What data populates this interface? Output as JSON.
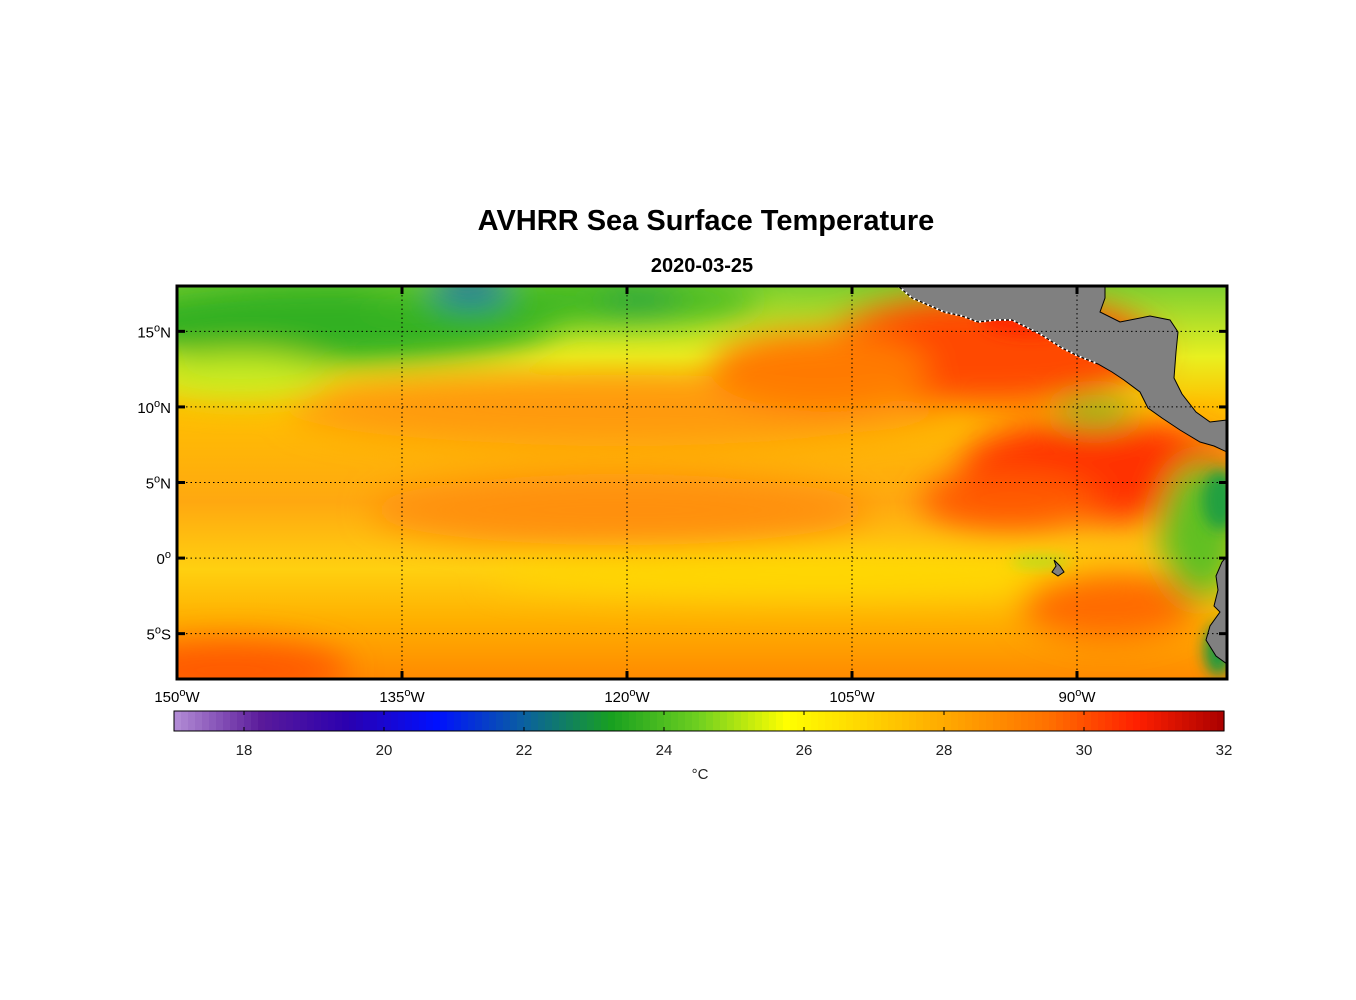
{
  "figure": {
    "title": "AVHRR Sea Surface Temperature",
    "subtitle": "2020-03-25"
  },
  "map": {
    "lon_range": [
      -150,
      -80
    ],
    "lat_range": [
      -8,
      18
    ],
    "lon_ticks": [
      {
        "value": -150,
        "num": "150",
        "sup": "o",
        "hem": "W"
      },
      {
        "value": -135,
        "num": "135",
        "sup": "o",
        "hem": "W"
      },
      {
        "value": -120,
        "num": "120",
        "sup": "o",
        "hem": "W"
      },
      {
        "value": -105,
        "num": "105",
        "sup": "o",
        "hem": "W"
      },
      {
        "value": -90,
        "num": "90",
        "sup": "o",
        "hem": "W"
      }
    ],
    "lat_ticks": [
      {
        "value": 15,
        "num": "15",
        "sup": "o",
        "hem": "N"
      },
      {
        "value": 10,
        "num": "10",
        "sup": "o",
        "hem": "N"
      },
      {
        "value": 5,
        "num": "5",
        "sup": "o",
        "hem": "N"
      },
      {
        "value": 0,
        "num": "0",
        "sup": "o",
        "hem": ""
      },
      {
        "value": -5,
        "num": "5",
        "sup": "o",
        "hem": "S"
      }
    ],
    "land_color": "#808080",
    "grid": "dotted"
  },
  "colorbar": {
    "range": [
      17,
      32
    ],
    "ticks": [
      "18",
      "20",
      "22",
      "24",
      "26",
      "28",
      "30",
      "32"
    ],
    "tick_values": [
      18,
      20,
      22,
      24,
      26,
      28,
      30,
      32
    ],
    "unit_label": "°C",
    "colors": [
      "#b48ed6",
      "#5a1a9a",
      "#2a00b0",
      "#0010ff",
      "#0a60a0",
      "#18a020",
      "#70d020",
      "#ffff00",
      "#ffd000",
      "#ffa000",
      "#ff7000",
      "#ff2000",
      "#aa0000"
    ]
  }
}
